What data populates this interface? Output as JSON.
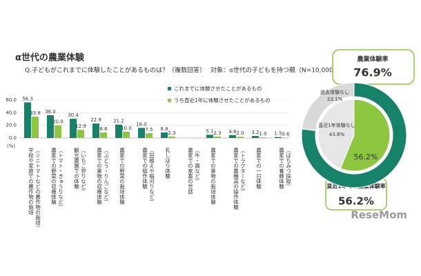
{
  "chart_data": [
    {
      "type": "bar",
      "title": "α世代の農業体験",
      "subtitle": "Q.子どもがこれまでに体験したことがあるものは？（複数回答）",
      "annotation": "対象：α世代の子どもを持つ親（N=10,000）",
      "y_unit": "(%)",
      "categories": [
        "学校や家庭での農作物の栽培",
        "農家での野菜の収穫体験",
        "観光農園での体験",
        "農家での果物の収穫体験",
        "農家での野菜の栽培体験",
        "農家での稲作体験",
        "乳しぼり体験",
        "農家での家畜の世話",
        "農家での果物の栽培体験",
        "農家での農機具の操作体験",
        "農家での一日体験",
        "農家での養蜂体験"
      ],
      "category_notes": [
        "（ミニトマトなどの農作物の栽培）",
        "（トマト・きゅうりなど）",
        "（いちご狩りなど）",
        "（ぶどう・りんごなど）",
        null,
        "（田植えや稲刈りなど）",
        null,
        "（牛・鶏など）",
        null,
        "（トラクターなど）",
        null,
        "（はちみつ採取）"
      ],
      "series": [
        {
          "name": "これまでに体験させたことがあるもの",
          "color": "#17826a",
          "values": [
            56.3,
            36.0,
            30.4,
            22.9,
            21.2,
            16.0,
            8.8,
            null,
            5.1,
            4.6,
            3.2,
            1.5
          ],
          "value_labels": [
            "56.3",
            "36.0",
            "30.4",
            "22.9",
            "21.2",
            "16.0",
            "8.8",
            null,
            "5.1",
            "4.6",
            "3.2",
            "1.5"
          ]
        },
        {
          "name": "うち直近1年に体験させたことがあるもの",
          "color": "#8dc63f",
          "values": [
            33.8,
            20.0,
            12.9,
            8.6,
            10.0,
            7.5,
            2.3,
            null,
            2.3,
            2.0,
            1.0,
            0.6
          ],
          "value_labels": [
            "33.8",
            "20.0",
            "12.9",
            "8.6",
            "10.0",
            "7.5",
            "2.3",
            null,
            "2.3",
            "2.0",
            "1.0",
            "0.6"
          ]
        }
      ],
      "ylim": [
        0,
        60
      ],
      "yticks": [
        {
          "value": 0,
          "label": "0.0"
        },
        {
          "value": 20,
          "label": "20.0"
        },
        {
          "value": 40,
          "label": "40.0"
        },
        {
          "value": 60,
          "label": "60.0"
        }
      ]
    },
    {
      "type": "pie",
      "title": "農業体験率",
      "categories": [
        null,
        "過去体験なし"
      ],
      "values": [
        76.9,
        23.1
      ],
      "value_labels": [
        "76.9%",
        "23.1%"
      ],
      "colors": [
        "#17826a",
        "#d9d9d9"
      ]
    },
    {
      "type": "pie",
      "title": "直近1年での農業体験率",
      "categories": [
        null,
        "直近1年体験なし"
      ],
      "values": [
        56.2,
        43.8
      ],
      "value_labels": [
        "56.2%",
        "43.8%"
      ],
      "colors": [
        "#8dc63f",
        "#e6e6e6"
      ]
    }
  ],
  "source": "ReseMom"
}
